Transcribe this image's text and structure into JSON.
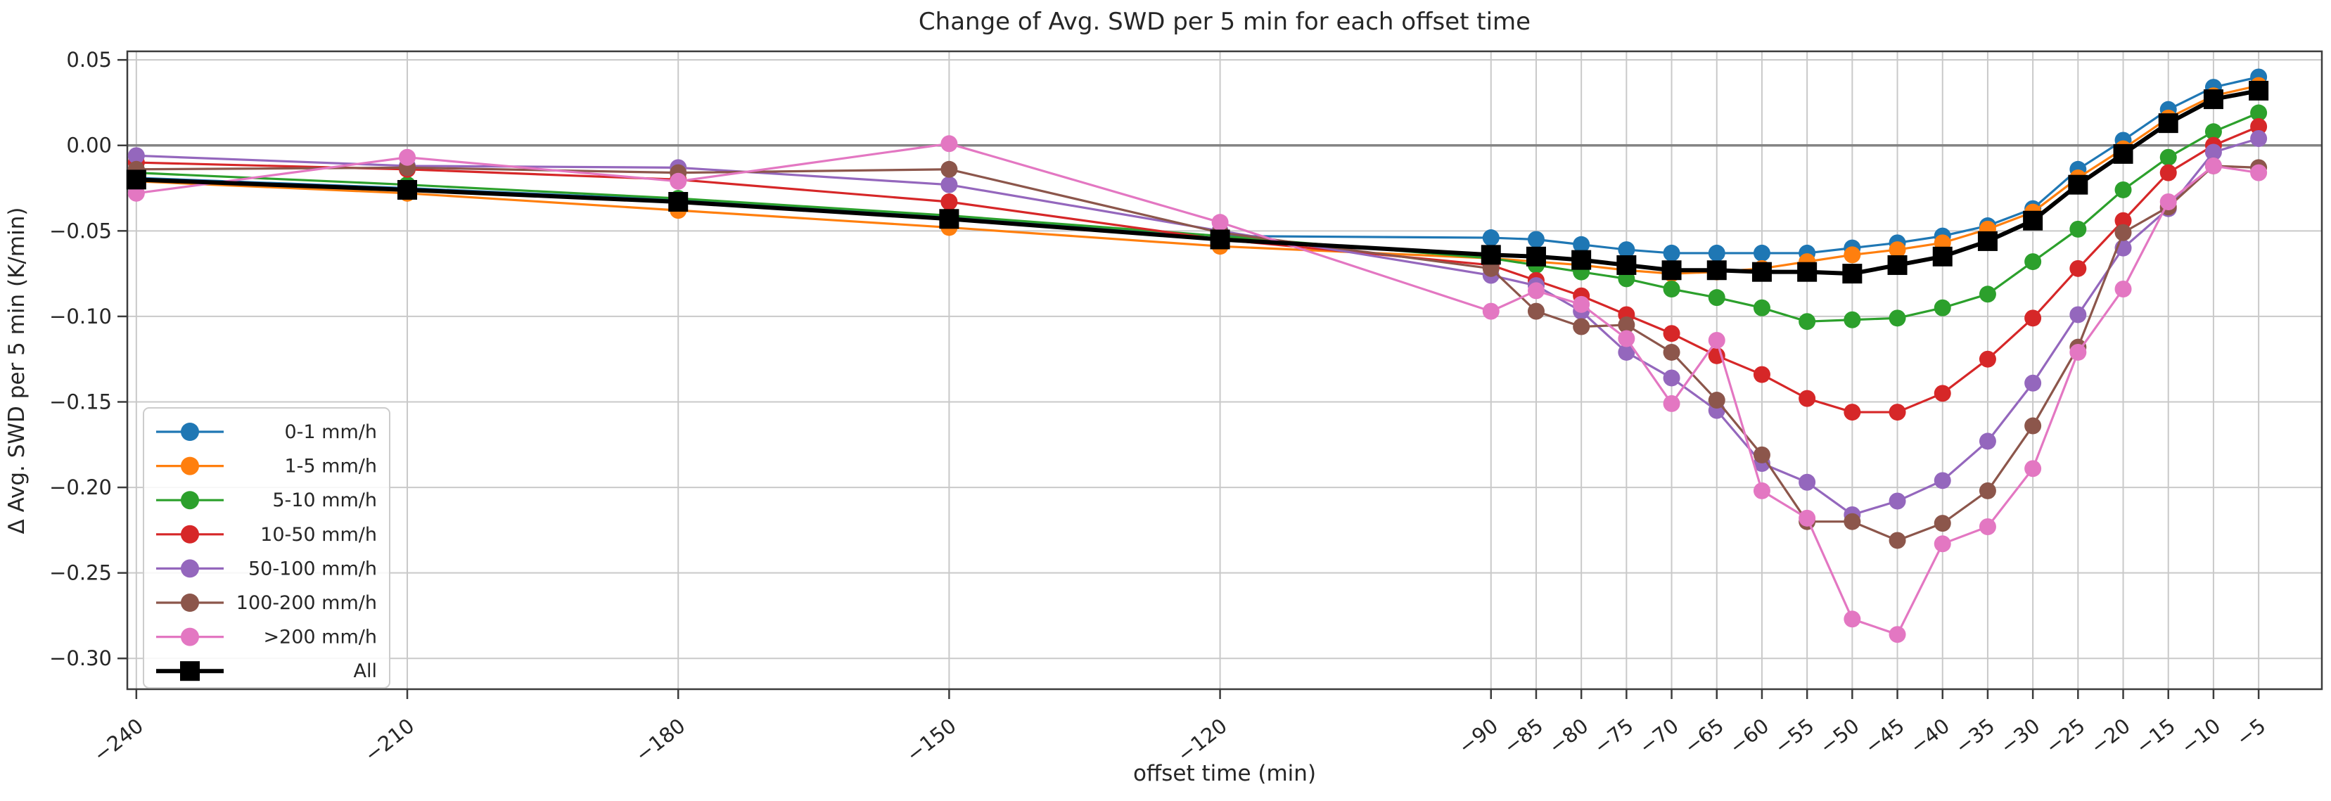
{
  "page": {
    "background": "#ffffff"
  },
  "chart_data": {
    "type": "line",
    "title": "Change of Avg. SWD per 5 min for each offset time",
    "xlabel": "offset time (min)",
    "ylabel": "Δ Avg. SWD per 5 min (K/min)",
    "grid": true,
    "legend_position": "lower left",
    "xlim": [
      -241,
      2
    ],
    "ylim": [
      -0.318,
      0.055
    ],
    "x": [
      -240,
      -210,
      -180,
      -150,
      -120,
      -90,
      -85,
      -80,
      -75,
      -70,
      -65,
      -60,
      -55,
      -50,
      -45,
      -40,
      -35,
      -30,
      -25,
      -20,
      -15,
      -10,
      -5
    ],
    "xtick_labels": [
      "−240",
      "−210",
      "−180",
      "−150",
      "−120",
      "−90",
      "−85",
      "−80",
      "−75",
      "−70",
      "−65",
      "−60",
      "−55",
      "−50",
      "−45",
      "−40",
      "−35",
      "−30",
      "−25",
      "−20",
      "−15",
      "−10",
      "−5"
    ],
    "yticks": [
      0.05,
      0.0,
      -0.05,
      -0.1,
      -0.15,
      -0.2,
      -0.25,
      -0.3
    ],
    "ytick_labels": [
      "0.05",
      "0.00",
      "−0.05",
      "−0.10",
      "−0.15",
      "−0.20",
      "−0.25",
      "−0.30"
    ],
    "zero_line": 0.0,
    "grid_color": "#c9c9c9",
    "zero_line_color": "#848484",
    "spine_color": "#3c3c3c",
    "series": [
      {
        "name": "0-1 mm/h",
        "color": "#1f77b4",
        "marker": "circle",
        "values": [
          -0.019,
          -0.025,
          -0.032,
          -0.042,
          -0.053,
          -0.054,
          -0.055,
          -0.058,
          -0.061,
          -0.063,
          -0.063,
          -0.063,
          -0.063,
          -0.06,
          -0.057,
          -0.053,
          -0.047,
          -0.037,
          -0.014,
          0.003,
          0.021,
          0.034,
          0.04
        ]
      },
      {
        "name": "1-5 mm/h",
        "color": "#ff7f0e",
        "marker": "circle",
        "values": [
          -0.021,
          -0.028,
          -0.038,
          -0.048,
          -0.059,
          -0.066,
          -0.068,
          -0.07,
          -0.073,
          -0.075,
          -0.074,
          -0.072,
          -0.068,
          -0.064,
          -0.061,
          -0.057,
          -0.049,
          -0.039,
          -0.019,
          -0.002,
          0.016,
          0.029,
          0.035
        ]
      },
      {
        "name": "5-10 mm/h",
        "color": "#2ca02c",
        "marker": "circle",
        "values": [
          -0.016,
          -0.023,
          -0.031,
          -0.041,
          -0.053,
          -0.066,
          -0.07,
          -0.074,
          -0.078,
          -0.084,
          -0.089,
          -0.095,
          -0.103,
          -0.102,
          -0.101,
          -0.095,
          -0.087,
          -0.068,
          -0.049,
          -0.026,
          -0.007,
          0.008,
          0.019
        ]
      },
      {
        "name": "10-50 mm/h",
        "color": "#d62728",
        "marker": "circle",
        "values": [
          -0.01,
          -0.014,
          -0.02,
          -0.033,
          -0.055,
          -0.07,
          -0.079,
          -0.088,
          -0.099,
          -0.11,
          -0.123,
          -0.134,
          -0.148,
          -0.156,
          -0.156,
          -0.145,
          -0.125,
          -0.101,
          -0.072,
          -0.044,
          -0.016,
          0.0,
          0.011
        ]
      },
      {
        "name": "50-100 mm/h",
        "color": "#9467bd",
        "marker": "circle",
        "values": [
          -0.006,
          -0.012,
          -0.013,
          -0.023,
          -0.05,
          -0.076,
          -0.082,
          -0.097,
          -0.121,
          -0.136,
          -0.155,
          -0.186,
          -0.197,
          -0.216,
          -0.208,
          -0.196,
          -0.173,
          -0.139,
          -0.099,
          -0.06,
          -0.037,
          -0.004,
          0.004
        ]
      },
      {
        "name": "100-200 mm/h",
        "color": "#8c564b",
        "marker": "circle",
        "values": [
          -0.014,
          -0.013,
          -0.016,
          -0.014,
          -0.051,
          -0.072,
          -0.097,
          -0.106,
          -0.105,
          -0.121,
          -0.149,
          -0.181,
          -0.22,
          -0.22,
          -0.231,
          -0.221,
          -0.202,
          -0.164,
          -0.118,
          -0.051,
          -0.036,
          -0.012,
          -0.013
        ]
      },
      {
        "name": ">200 mm/h",
        "color": "#e377c2",
        "marker": "circle",
        "values": [
          -0.028,
          -0.007,
          -0.021,
          0.001,
          -0.045,
          -0.097,
          -0.085,
          -0.093,
          -0.113,
          -0.151,
          -0.114,
          -0.202,
          -0.218,
          -0.277,
          -0.286,
          -0.233,
          -0.223,
          -0.189,
          -0.121,
          -0.084,
          -0.033,
          -0.012,
          -0.016
        ]
      },
      {
        "name": "All",
        "color": "#000000",
        "marker": "square",
        "values": [
          -0.02,
          -0.026,
          -0.033,
          -0.043,
          -0.055,
          -0.064,
          -0.065,
          -0.067,
          -0.07,
          -0.073,
          -0.073,
          -0.074,
          -0.074,
          -0.075,
          -0.07,
          -0.065,
          -0.056,
          -0.044,
          -0.023,
          -0.005,
          0.013,
          0.027,
          0.032
        ]
      }
    ]
  }
}
